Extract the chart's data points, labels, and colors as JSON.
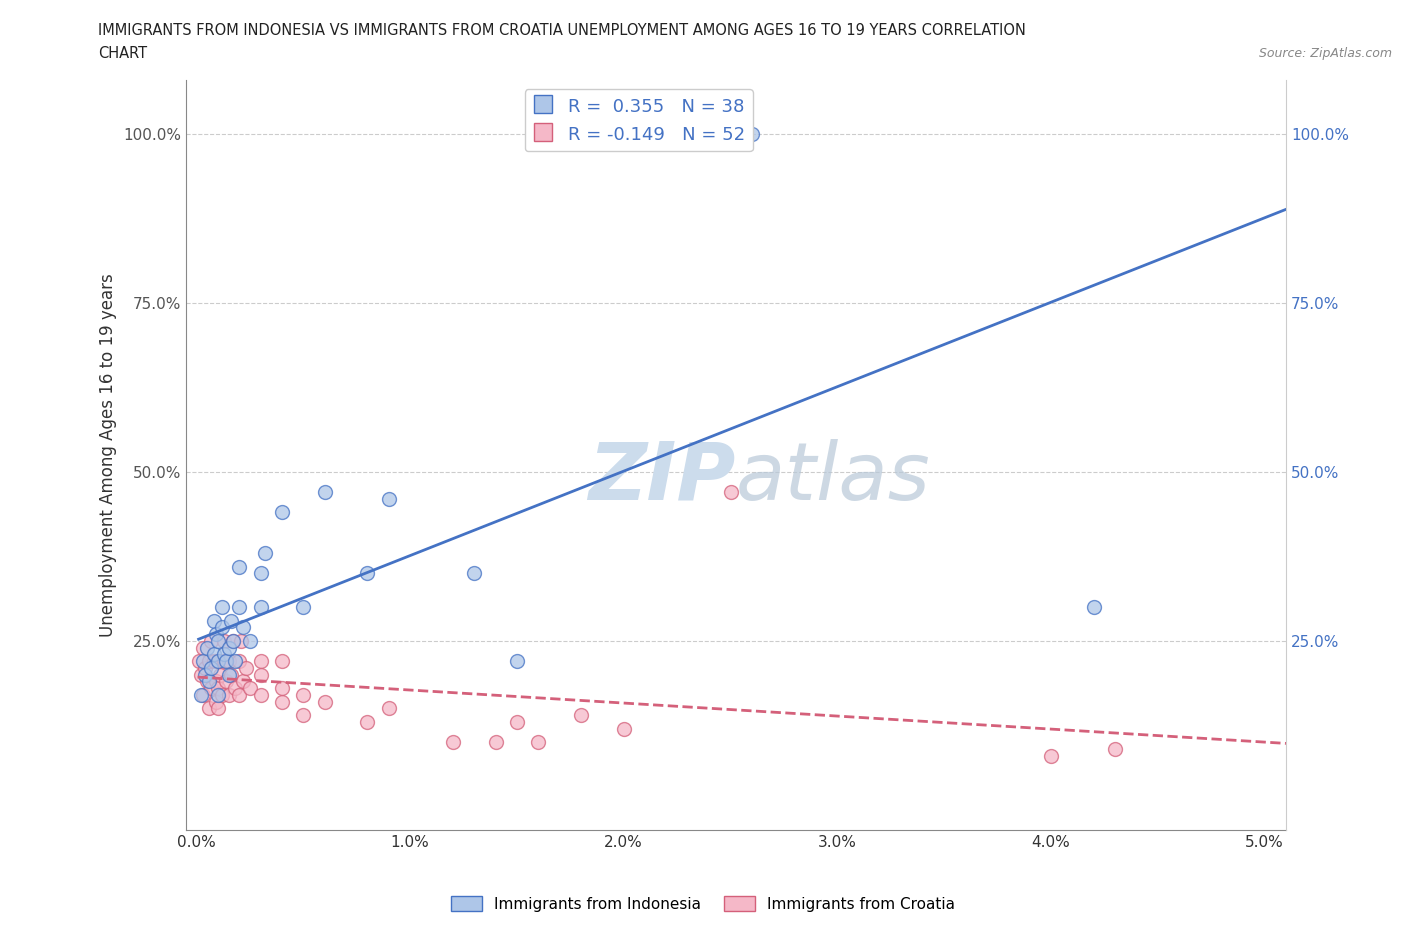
{
  "title_line1": "IMMIGRANTS FROM INDONESIA VS IMMIGRANTS FROM CROATIA UNEMPLOYMENT AMONG AGES 16 TO 19 YEARS CORRELATION",
  "title_line2": "CHART",
  "source_text": "Source: ZipAtlas.com",
  "ylabel": "Unemployment Among Ages 16 to 19 years",
  "xlim": [
    -0.0005,
    0.051
  ],
  "ylim": [
    -0.03,
    1.08
  ],
  "xtick_labels": [
    "0.0%",
    "1.0%",
    "2.0%",
    "3.0%",
    "4.0%",
    "5.0%"
  ],
  "xtick_vals": [
    0.0,
    0.01,
    0.02,
    0.03,
    0.04,
    0.05
  ],
  "ytick_labels": [
    "25.0%",
    "50.0%",
    "75.0%",
    "100.0%"
  ],
  "ytick_vals": [
    0.25,
    0.5,
    0.75,
    1.0
  ],
  "r_indonesia": 0.355,
  "n_indonesia": 38,
  "r_croatia": -0.149,
  "n_croatia": 52,
  "indonesia_color": "#aec6e8",
  "croatia_color": "#f5b8c8",
  "indonesia_line_color": "#4472c4",
  "croatia_line_color": "#d4607a",
  "watermark_color": "#ccdcec",
  "background_color": "#ffffff",
  "grid_color": "#cccccc",
  "indonesia_x": [
    0.0002,
    0.0003,
    0.0004,
    0.0005,
    0.0006,
    0.0007,
    0.0008,
    0.0008,
    0.0009,
    0.001,
    0.001,
    0.001,
    0.0012,
    0.0012,
    0.0013,
    0.0014,
    0.0015,
    0.0015,
    0.0016,
    0.0017,
    0.0018,
    0.002,
    0.002,
    0.0022,
    0.0025,
    0.003,
    0.003,
    0.0032,
    0.004,
    0.005,
    0.006,
    0.008,
    0.009,
    0.013,
    0.015,
    0.025,
    0.026,
    0.042
  ],
  "indonesia_y": [
    0.17,
    0.22,
    0.2,
    0.24,
    0.19,
    0.21,
    0.28,
    0.23,
    0.26,
    0.17,
    0.22,
    0.25,
    0.3,
    0.27,
    0.23,
    0.22,
    0.2,
    0.24,
    0.28,
    0.25,
    0.22,
    0.3,
    0.36,
    0.27,
    0.25,
    0.35,
    0.3,
    0.38,
    0.44,
    0.3,
    0.47,
    0.35,
    0.46,
    0.35,
    0.22,
    1.0,
    1.0,
    0.3
  ],
  "croatia_x": [
    0.0001,
    0.0002,
    0.0003,
    0.0003,
    0.0004,
    0.0005,
    0.0006,
    0.0006,
    0.0007,
    0.0007,
    0.0008,
    0.0009,
    0.0009,
    0.001,
    0.001,
    0.001,
    0.0011,
    0.0012,
    0.0013,
    0.0013,
    0.0014,
    0.0015,
    0.0015,
    0.0016,
    0.0017,
    0.0018,
    0.002,
    0.002,
    0.0021,
    0.0022,
    0.0023,
    0.0025,
    0.003,
    0.003,
    0.003,
    0.004,
    0.004,
    0.004,
    0.005,
    0.005,
    0.006,
    0.008,
    0.009,
    0.012,
    0.014,
    0.015,
    0.016,
    0.018,
    0.02,
    0.025,
    0.04,
    0.043
  ],
  "croatia_y": [
    0.22,
    0.2,
    0.24,
    0.17,
    0.21,
    0.19,
    0.15,
    0.22,
    0.18,
    0.25,
    0.22,
    0.16,
    0.19,
    0.15,
    0.18,
    0.22,
    0.2,
    0.17,
    0.22,
    0.25,
    0.19,
    0.17,
    0.22,
    0.2,
    0.25,
    0.18,
    0.22,
    0.17,
    0.25,
    0.19,
    0.21,
    0.18,
    0.22,
    0.17,
    0.2,
    0.16,
    0.22,
    0.18,
    0.17,
    0.14,
    0.16,
    0.13,
    0.15,
    0.1,
    0.1,
    0.13,
    0.1,
    0.14,
    0.12,
    0.47,
    0.08,
    0.09
  ]
}
